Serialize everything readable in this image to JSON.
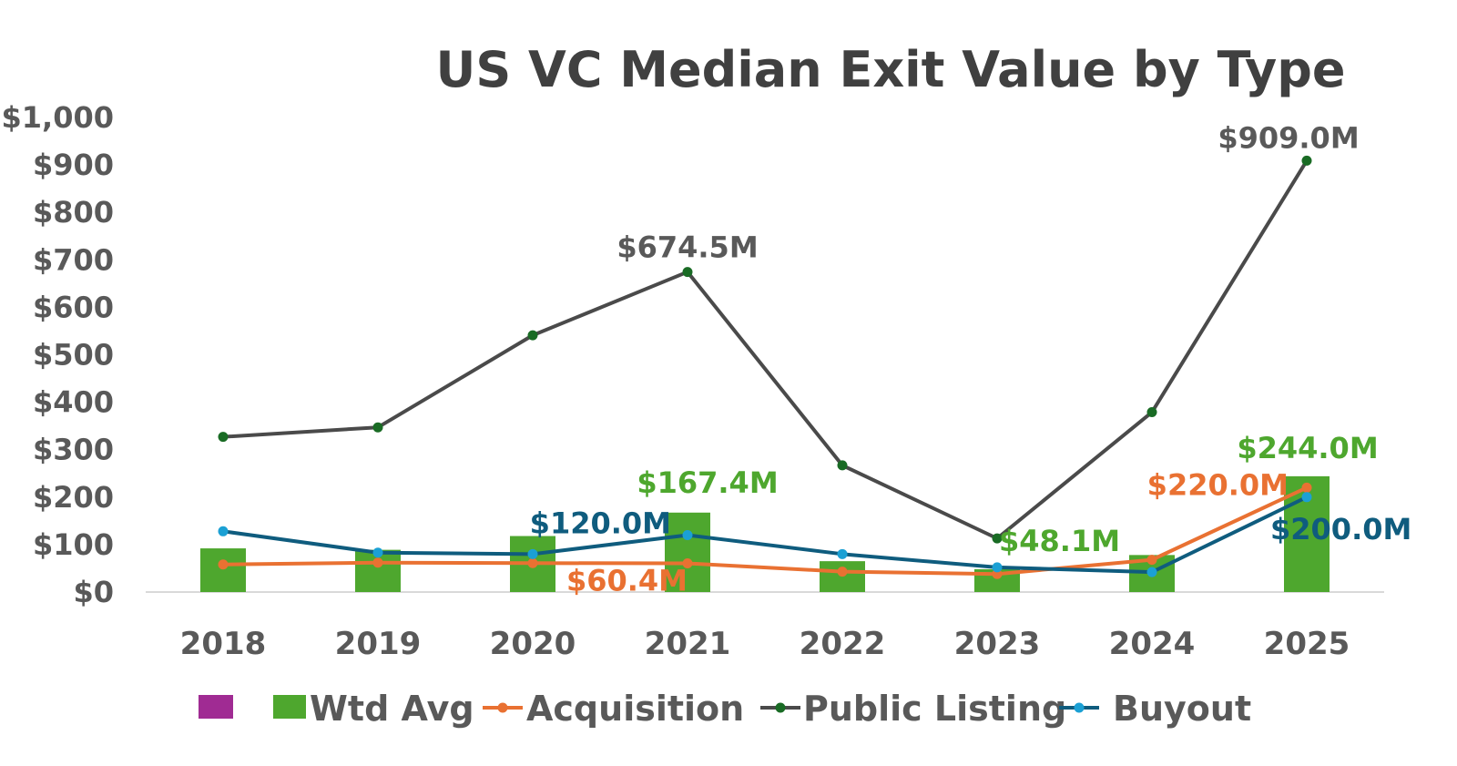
{
  "chart_data": {
    "type": "bar+line",
    "title": "US VC Median Exit Value by Type",
    "categories": [
      "2018",
      "2019",
      "2020",
      "2021",
      "2022",
      "2023",
      "2024",
      "2025"
    ],
    "y_axis": {
      "min": 0,
      "max": 1000,
      "step": 100,
      "tick_labels": [
        "$0",
        "$100",
        "$200",
        "$300",
        "$400",
        "$500",
        "$600",
        "$700",
        "$800",
        "$900",
        "$1,000"
      ],
      "grid": false
    },
    "bars": {
      "name": "Wtd Avg",
      "color": "#4EA72E",
      "values": [
        92,
        89,
        118,
        167.4,
        65,
        48.1,
        78,
        244
      ]
    },
    "lines": [
      {
        "name": "Acquisition",
        "color": "#E97132",
        "values": [
          58,
          62,
          61,
          60.4,
          43,
          38,
          68,
          220
        ]
      },
      {
        "name": "Public Listing",
        "color": "#4A4A4A",
        "marker_color": "#196B24",
        "values": [
          327,
          347,
          541,
          674.5,
          267,
          113,
          379,
          909
        ]
      },
      {
        "name": "Buyout",
        "color": "#0F5C7E",
        "marker_color": "#1BA0D4",
        "values": [
          128,
          83,
          80,
          120,
          80,
          52,
          42,
          200
        ]
      }
    ],
    "data_labels": [
      {
        "series": "Public Listing",
        "category": "2021",
        "text": "$674.5M",
        "color": "#595959"
      },
      {
        "series": "Public Listing",
        "category": "2025",
        "text": "$909.0M",
        "color": "#595959"
      },
      {
        "series": "Wtd Avg",
        "category": "2021",
        "text": "$167.4M",
        "color": "#4EA72E"
      },
      {
        "series": "Wtd Avg",
        "category": "2023",
        "text": "$48.1M",
        "color": "#4EA72E"
      },
      {
        "series": "Wtd Avg",
        "category": "2025",
        "text": "$244.0M",
        "color": "#4EA72E"
      },
      {
        "series": "Buyout",
        "category": "2021",
        "text": "$120.0M",
        "color": "#0F5C7E"
      },
      {
        "series": "Buyout",
        "category": "2025",
        "text": "$200.0M",
        "color": "#0F5C7E"
      },
      {
        "series": "Acquisition",
        "category": "2021",
        "text": "$60.4M",
        "color": "#E97132"
      },
      {
        "series": "Acquisition",
        "category": "2025",
        "text": "$220.0M",
        "color": "#E97132"
      }
    ],
    "legend": {
      "position": "bottom",
      "entries": [
        {
          "name": "",
          "type": "box",
          "color": "#A02B93"
        },
        {
          "name": "Wtd Avg",
          "type": "box",
          "color": "#4EA72E"
        },
        {
          "name": "Acquisition",
          "type": "line",
          "color": "#E97132"
        },
        {
          "name": "Public Listing",
          "type": "line",
          "color": "#4A4A4A",
          "marker_color": "#196B24"
        },
        {
          "name": "Buyout",
          "type": "line",
          "color": "#0F5C7E",
          "marker_color": "#1BA0D4"
        }
      ]
    }
  }
}
